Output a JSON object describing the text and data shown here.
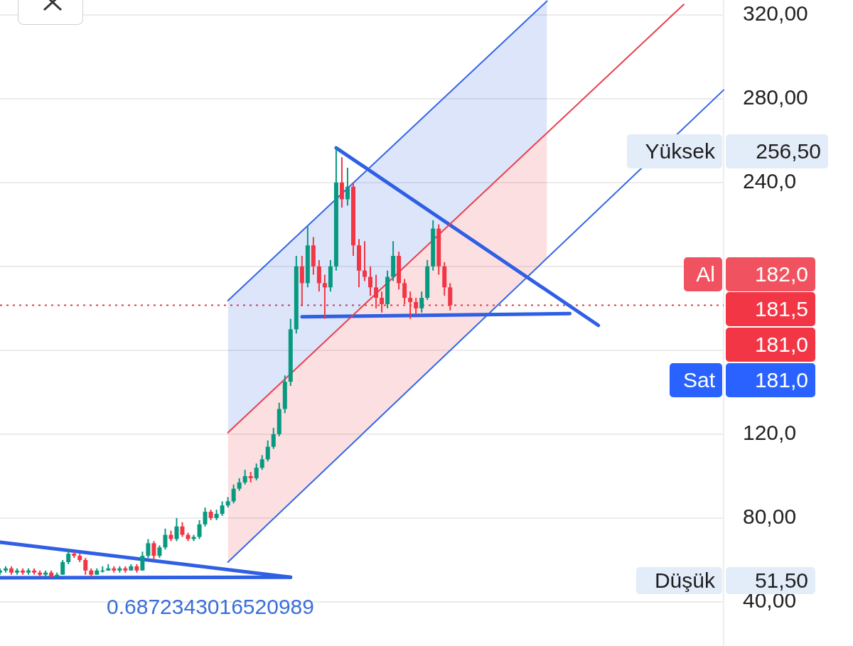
{
  "chart_data": {
    "type": "candlestick",
    "categories": [
      null,
      null,
      null,
      null,
      null,
      null,
      null,
      null,
      null,
      null,
      null,
      null,
      null,
      null,
      null,
      null,
      null,
      null,
      null,
      null,
      null,
      null,
      null,
      null,
      null,
      null,
      null,
      null,
      null,
      null,
      null,
      null,
      null,
      null,
      null,
      null,
      null,
      null,
      null,
      null,
      null,
      null,
      null,
      null,
      null,
      null,
      null,
      null,
      null,
      null,
      null,
      null,
      null,
      null,
      null,
      null,
      null,
      null,
      null,
      null,
      null,
      null,
      null,
      null,
      null,
      null,
      null,
      null,
      null,
      null,
      null,
      null,
      null,
      null,
      null,
      null,
      null,
      null,
      null,
      null,
      null,
      null,
      null,
      null,
      null,
      null,
      null,
      null,
      null,
      null,
      null,
      null,
      null,
      null,
      null,
      null,
      null,
      null,
      null,
      null,
      null,
      null,
      null,
      null,
      null,
      null,
      null,
      null,
      null,
      null,
      null,
      null,
      null,
      null,
      null,
      null,
      null,
      null,
      null,
      null,
      null,
      null,
      null,
      null,
      null,
      null,
      null,
      null
    ],
    "ohlc": [
      [
        54,
        56,
        53,
        55
      ],
      [
        55,
        57,
        54,
        56
      ],
      [
        56,
        57,
        53,
        54
      ],
      [
        54,
        56,
        53,
        55
      ],
      [
        55,
        56,
        53,
        54
      ],
      [
        54,
        56,
        53,
        55
      ],
      [
        55,
        56,
        53,
        54
      ],
      [
        54,
        55,
        52,
        53
      ],
      [
        53,
        55,
        52,
        54
      ],
      [
        54,
        55,
        52,
        52
      ],
      [
        52,
        54,
        51.5,
        53
      ],
      [
        53,
        60,
        53,
        59
      ],
      [
        59,
        65,
        58,
        63
      ],
      [
        63,
        64,
        61,
        62
      ],
      [
        62,
        63,
        59,
        60
      ],
      [
        60,
        61,
        53,
        55
      ],
      [
        55,
        56,
        52,
        53
      ],
      [
        53,
        56,
        53,
        55
      ],
      [
        55,
        57,
        54,
        55
      ],
      [
        55,
        58,
        55,
        56
      ],
      [
        56,
        57,
        54,
        55
      ],
      [
        55,
        57,
        54,
        56
      ],
      [
        56,
        57,
        54,
        55
      ],
      [
        55,
        58,
        55,
        57
      ],
      [
        57,
        58,
        54,
        55
      ],
      [
        55,
        64,
        55,
        62
      ],
      [
        62,
        70,
        61,
        68
      ],
      [
        68,
        69,
        60,
        62
      ],
      [
        62,
        67,
        61,
        66
      ],
      [
        66,
        75,
        65,
        72
      ],
      [
        72,
        74,
        69,
        70
      ],
      [
        70,
        80,
        69,
        76
      ],
      [
        76,
        78,
        71,
        72
      ],
      [
        72,
        73,
        69,
        70
      ],
      [
        70,
        72,
        69,
        71
      ],
      [
        71,
        79,
        70,
        77
      ],
      [
        77,
        85,
        76,
        83
      ],
      [
        83,
        84,
        79,
        80
      ],
      [
        80,
        84,
        79,
        82
      ],
      [
        82,
        88,
        81,
        86
      ],
      [
        86,
        90,
        85,
        88
      ],
      [
        88,
        96,
        87,
        94
      ],
      [
        94,
        99,
        93,
        97
      ],
      [
        97,
        103,
        96,
        100
      ],
      [
        100,
        102,
        97,
        99
      ],
      [
        99,
        106,
        98,
        104
      ],
      [
        104,
        110,
        103,
        108
      ],
      [
        108,
        117,
        107,
        114
      ],
      [
        114,
        123,
        113,
        120
      ],
      [
        120,
        135,
        119,
        132
      ],
      [
        132,
        148,
        130,
        145
      ],
      [
        145,
        175,
        143,
        170
      ],
      [
        170,
        205,
        168,
        200
      ],
      [
        200,
        205,
        181,
        192
      ],
      [
        192,
        219,
        190,
        210
      ],
      [
        210,
        214,
        196,
        200
      ],
      [
        200,
        203,
        188,
        192
      ],
      [
        192,
        196,
        175,
        190
      ],
      [
        190,
        203,
        188,
        200
      ],
      [
        200,
        256.5,
        198,
        240
      ],
      [
        240,
        252,
        228,
        232
      ],
      [
        232,
        247,
        229,
        238
      ],
      [
        238,
        240,
        205,
        210
      ],
      [
        210,
        213,
        190,
        198
      ],
      [
        198,
        212,
        193,
        195
      ],
      [
        195,
        200,
        186,
        190
      ],
      [
        190,
        196,
        180,
        185
      ],
      [
        185,
        188,
        178,
        182
      ],
      [
        182,
        198,
        180,
        195
      ],
      [
        195,
        212,
        193,
        205
      ],
      [
        205,
        207,
        189,
        192
      ],
      [
        192,
        194,
        182,
        185
      ],
      [
        185,
        188,
        175,
        183
      ],
      [
        183,
        185,
        177,
        180
      ],
      [
        180,
        188,
        178,
        185
      ],
      [
        185,
        203,
        184,
        200
      ],
      [
        200,
        222,
        198,
        218
      ],
      [
        218,
        220,
        196,
        200
      ],
      [
        200,
        202,
        186,
        190
      ],
      [
        190,
        192,
        179,
        181.5
      ],
      null,
      null,
      null,
      null,
      null,
      null,
      null,
      null,
      null,
      null,
      null,
      null,
      null,
      null,
      null,
      null,
      null,
      null,
      null,
      null,
      null,
      null,
      null,
      null,
      null,
      null,
      null,
      null,
      null,
      null,
      null,
      null,
      null,
      null,
      null,
      null,
      null,
      null,
      null,
      null,
      null,
      null,
      null,
      null,
      null,
      null,
      null,
      null
    ],
    "colors": [
      "#089981",
      "#089981",
      "#f23645",
      "#089981",
      "#f23645",
      "#089981",
      "#f23645",
      "#f23645",
      "#089981",
      "#f23645",
      "#089981",
      "#089981",
      "#089981",
      "#f23645",
      "#f23645",
      "#f23645",
      "#f23645",
      "#089981",
      "#089981",
      "#089981",
      "#f23645",
      "#089981",
      "#f23645",
      "#089981",
      "#f23645",
      "#089981",
      "#089981",
      "#f23645",
      "#089981",
      "#089981",
      "#f23645",
      "#089981",
      "#f23645",
      "#f23645",
      "#089981",
      "#089981",
      "#089981",
      "#f23645",
      "#089981",
      "#089981",
      "#089981",
      "#089981",
      "#089981",
      "#089981",
      "#f23645",
      "#089981",
      "#089981",
      "#089981",
      "#089981",
      "#089981",
      "#089981",
      "#089981",
      "#089981",
      "#f23645",
      "#089981",
      "#f23645",
      "#f23645",
      "#f23645",
      "#089981",
      "#089981",
      "#f23645",
      "#089981",
      "#f23645",
      "#f23645",
      "#f23645",
      "#f23645",
      "#f23645",
      "#f23645",
      "#089981",
      "#089981",
      "#f23645",
      "#f23645",
      "#f23645",
      "#f23645",
      "#089981",
      "#089981",
      "#089981",
      "#f23645",
      "#f23645",
      "#f23645",
      null,
      null,
      null,
      null,
      null,
      null,
      null,
      null,
      null,
      null,
      null,
      null,
      null,
      null,
      null,
      null,
      null,
      null,
      null,
      null,
      null,
      null,
      null,
      null,
      null,
      null,
      null,
      null,
      null,
      null,
      null,
      null,
      null,
      null,
      null,
      null,
      null,
      null,
      null,
      null,
      null,
      null,
      null,
      null,
      null,
      null,
      null,
      null
    ],
    "series": [
      {
        "type": "line",
        "color": "#3366e6",
        "values": [
          null,
          null,
          null,
          null,
          null,
          null,
          null,
          null,
          null,
          null,
          null,
          null,
          null,
          null,
          null,
          null,
          null,
          null,
          null,
          null,
          null,
          null,
          null,
          null,
          null,
          null,
          null,
          null,
          null,
          null,
          null,
          null,
          null,
          null,
          null,
          null,
          null,
          null,
          null,
          null,
          183.7,
          null,
          null,
          null,
          null,
          null,
          null,
          null,
          null,
          null,
          null,
          null,
          null,
          null,
          null,
          null,
          null,
          null,
          null,
          null,
          null,
          null,
          null,
          null,
          null,
          null,
          null,
          null,
          null,
          null,
          null,
          null,
          null,
          null,
          null,
          null,
          null,
          null,
          null,
          null,
          null,
          null,
          null,
          null,
          null,
          null,
          null,
          null,
          null,
          null,
          null,
          null,
          null,
          null,
          null,
          null,
          326.5,
          null,
          null,
          null,
          null,
          null,
          null,
          null,
          null,
          null,
          null,
          null,
          null,
          null,
          null,
          null,
          null,
          null,
          null,
          null,
          null,
          null,
          null,
          null,
          null,
          null,
          null,
          null,
          null,
          null,
          null,
          null
        ],
        "upper": [
          null,
          null,
          null,
          null,
          null,
          null,
          null,
          null,
          null,
          null,
          null,
          null,
          null,
          null,
          null,
          null,
          null,
          null,
          null,
          null,
          null,
          null,
          null,
          null,
          null,
          null,
          null,
          null,
          null,
          null,
          null,
          null,
          null,
          null,
          null,
          null,
          null,
          null,
          null,
          null,
          183.7,
          null,
          null,
          null,
          null,
          null,
          null,
          null,
          null,
          null,
          null,
          null,
          null,
          null,
          null,
          null,
          null,
          null,
          null,
          null,
          null,
          null,
          null,
          null,
          null,
          null,
          null,
          null,
          null,
          null,
          null,
          null,
          null,
          null,
          null,
          null,
          null,
          null,
          null,
          null,
          null,
          null,
          null,
          null,
          null,
          null,
          null,
          null,
          null,
          null,
          null,
          null,
          null,
          null,
          null,
          null,
          326.5,
          null,
          null,
          null,
          null,
          null,
          null,
          null,
          null,
          null,
          null,
          null,
          null,
          null,
          null,
          null,
          null,
          null,
          null,
          null,
          null,
          null,
          null,
          null,
          null,
          null,
          null,
          null,
          null,
          null,
          null,
          null
        ],
        "lower": [
          null,
          null,
          null,
          null,
          null,
          null,
          null,
          null,
          null,
          null,
          null,
          null,
          null,
          null,
          null,
          null,
          null,
          null,
          null,
          null,
          null,
          null,
          null,
          null,
          null,
          null,
          null,
          null,
          null,
          null,
          null,
          null,
          null,
          null,
          null,
          null,
          null,
          null,
          null,
          null,
          120.7,
          null,
          null,
          null,
          null,
          null,
          null,
          null,
          null,
          null,
          null,
          null,
          null,
          null,
          null,
          null,
          null,
          null,
          null,
          null,
          null,
          null,
          null,
          null,
          null,
          null,
          null,
          null,
          null,
          null,
          null,
          null,
          null,
          null,
          null,
          null,
          null,
          null,
          null,
          null,
          null,
          null,
          null,
          null,
          null,
          null,
          null,
          null,
          null,
          null,
          null,
          null,
          null,
          null,
          null,
          null,
          263.6,
          null,
          null,
          null,
          null,
          null,
          null,
          null,
          null,
          null,
          null,
          null,
          null,
          null,
          null,
          null,
          null,
          null,
          null,
          null,
          null,
          null,
          null,
          null,
          null,
          null,
          null,
          null,
          null,
          null,
          null,
          null
        ]
      },
      {
        "type": "line",
        "color": "#e8404f",
        "values": [
          null,
          null,
          null,
          null,
          null,
          null,
          null,
          null,
          null,
          null,
          null,
          null,
          null,
          null,
          null,
          null,
          null,
          null,
          null,
          null,
          null,
          null,
          null,
          null,
          null,
          null,
          null,
          null,
          null,
          null,
          null,
          null,
          null,
          null,
          null,
          null,
          null,
          null,
          null,
          null,
          120.7,
          null,
          null,
          null,
          null,
          null,
          null,
          null,
          null,
          null,
          null,
          null,
          null,
          null,
          null,
          null,
          null,
          null,
          null,
          null,
          null,
          null,
          null,
          null,
          null,
          null,
          null,
          null,
          null,
          null,
          null,
          null,
          null,
          null,
          null,
          null,
          null,
          null,
          null,
          null,
          null,
          null,
          null,
          null,
          null,
          null,
          null,
          null,
          null,
          null,
          null,
          null,
          null,
          null,
          null,
          null,
          null,
          null,
          null,
          null,
          null,
          null,
          null,
          null,
          null,
          null,
          null,
          null,
          null,
          null,
          null,
          null,
          null,
          null,
          null,
          null,
          null,
          null,
          null,
          null,
          324.9,
          null,
          null,
          null,
          null,
          null,
          null,
          null
        ],
        "upper": [
          null,
          null,
          null,
          null,
          null,
          null,
          null,
          null,
          null,
          null,
          null,
          null,
          null,
          null,
          null,
          null,
          null,
          null,
          null,
          null,
          null,
          null,
          null,
          null,
          null,
          null,
          null,
          null,
          null,
          null,
          null,
          null,
          null,
          null,
          null,
          null,
          null,
          null,
          null,
          null,
          120.7,
          null,
          null,
          null,
          null,
          null,
          null,
          null,
          null,
          null,
          null,
          null,
          null,
          null,
          null,
          null,
          null,
          null,
          null,
          null,
          null,
          null,
          null,
          null,
          null,
          null,
          null,
          null,
          null,
          null,
          null,
          null,
          null,
          null,
          null,
          null,
          null,
          null,
          null,
          null,
          null,
          null,
          null,
          null,
          null,
          null,
          null,
          null,
          null,
          null,
          null,
          null,
          null,
          null,
          null,
          null,
          263.6,
          null,
          null,
          null,
          null,
          null,
          null,
          null,
          null,
          null,
          null,
          null,
          null,
          null,
          null,
          null,
          null,
          null,
          null,
          null,
          null,
          null,
          null,
          null,
          null,
          null,
          null,
          null,
          null,
          null,
          null,
          null
        ],
        "lower": [
          null,
          null,
          null,
          null,
          null,
          null,
          null,
          null,
          null,
          null,
          null,
          null,
          null,
          null,
          null,
          null,
          null,
          null,
          null,
          null,
          null,
          null,
          null,
          null,
          null,
          null,
          null,
          null,
          null,
          null,
          null,
          null,
          null,
          null,
          null,
          null,
          null,
          null,
          null,
          null,
          59.0,
          null,
          null,
          null,
          null,
          null,
          null,
          null,
          null,
          null,
          null,
          null,
          null,
          null,
          null,
          null,
          null,
          null,
          null,
          null,
          null,
          null,
          null,
          null,
          null,
          null,
          null,
          null,
          null,
          null,
          null,
          null,
          null,
          null,
          null,
          null,
          null,
          null,
          null,
          null,
          null,
          null,
          null,
          null,
          null,
          null,
          null,
          null,
          null,
          null,
          null,
          null,
          null,
          null,
          null,
          null,
          204.1,
          null,
          null,
          null,
          null,
          null,
          null,
          null,
          null,
          null,
          null,
          null,
          null,
          null,
          null,
          null,
          null,
          null,
          null,
          null,
          null,
          null,
          null,
          null,
          null,
          null,
          null,
          null,
          null,
          null,
          null,
          null
        ]
      },
      {
        "type": "line",
        "color": "#3366e6",
        "values": [
          null,
          null,
          null,
          null,
          null,
          null,
          null,
          null,
          null,
          null,
          null,
          null,
          null,
          null,
          null,
          null,
          null,
          null,
          null,
          null,
          null,
          null,
          null,
          null,
          null,
          null,
          null,
          null,
          null,
          null,
          null,
          null,
          null,
          null,
          null,
          null,
          null,
          null,
          null,
          null,
          59.0,
          null,
          null,
          null,
          null,
          null,
          null,
          null,
          null,
          null,
          null,
          null,
          null,
          null,
          null,
          null,
          null,
          null,
          null,
          null,
          null,
          null,
          null,
          null,
          null,
          null,
          null,
          null,
          null,
          null,
          null,
          null,
          null,
          null,
          null,
          null,
          null,
          null,
          null,
          null,
          null,
          null,
          null,
          null,
          null,
          null,
          null,
          null,
          null,
          null,
          null,
          null,
          null,
          null,
          null,
          null,
          null,
          null,
          null,
          null,
          null,
          null,
          null,
          null,
          null,
          null,
          null,
          null,
          null,
          null,
          null,
          null,
          null,
          null,
          null,
          null,
          null,
          null,
          null,
          null,
          null,
          null,
          null,
          null,
          null,
          null,
          null,
          284.1
        ]
      },
      {
        "type": "line",
        "color": "#2f5fe4",
        "values": [
          51.5,
          null,
          null,
          null,
          null,
          null,
          null,
          null,
          null,
          null,
          null,
          null,
          null,
          null,
          null,
          null,
          null,
          null,
          null,
          null,
          null,
          null,
          null,
          null,
          null,
          null,
          null,
          null,
          null,
          null,
          null,
          null,
          null,
          null,
          null,
          null,
          null,
          null,
          null,
          null,
          null,
          null,
          null,
          null,
          null,
          null,
          null,
          null,
          null,
          null,
          null,
          51.8,
          null,
          null,
          null,
          null,
          null,
          null,
          null,
          null,
          null,
          null,
          null,
          null,
          null,
          null,
          null,
          null,
          null,
          null,
          null,
          null,
          null,
          null,
          null,
          null,
          null,
          null,
          null,
          null,
          null,
          null,
          null,
          null,
          null,
          null,
          null,
          null,
          null,
          null,
          null,
          null,
          null,
          null,
          null,
          null,
          null,
          null,
          null,
          null,
          null,
          null,
          null,
          null,
          null,
          null,
          null,
          null,
          null,
          null,
          null,
          null,
          null,
          null,
          null,
          null,
          null,
          null,
          null,
          null,
          null,
          null,
          null,
          null,
          null,
          null,
          null,
          null
        ]
      },
      {
        "type": "line",
        "color": "#2f5fe4",
        "values": [
          68.5,
          null,
          null,
          null,
          null,
          null,
          null,
          null,
          null,
          null,
          null,
          null,
          null,
          null,
          null,
          null,
          null,
          null,
          null,
          null,
          null,
          null,
          null,
          null,
          null,
          null,
          null,
          null,
          null,
          null,
          null,
          null,
          null,
          null,
          null,
          null,
          null,
          null,
          null,
          null,
          null,
          null,
          null,
          null,
          null,
          null,
          null,
          null,
          null,
          null,
          null,
          51.8,
          null,
          null,
          null,
          null,
          null,
          null,
          null,
          null,
          null,
          null,
          null,
          null,
          null,
          null,
          null,
          null,
          null,
          null,
          null,
          null,
          null,
          null,
          null,
          null,
          null,
          null,
          null,
          null,
          null,
          null,
          null,
          null,
          null,
          null,
          null,
          null,
          null,
          null,
          null,
          null,
          null,
          null,
          null,
          null,
          null,
          null,
          null,
          null,
          null,
          null,
          null,
          null,
          null,
          null,
          null,
          null,
          null,
          null,
          null,
          null,
          null,
          null,
          null,
          null,
          null,
          null,
          null,
          null,
          null,
          null,
          null,
          null,
          null,
          null,
          null,
          null
        ]
      },
      {
        "type": "line",
        "color": "#2f5fe4",
        "values": [
          null,
          null,
          null,
          null,
          null,
          null,
          null,
          null,
          null,
          null,
          null,
          null,
          null,
          null,
          null,
          null,
          null,
          null,
          null,
          null,
          null,
          null,
          null,
          null,
          null,
          null,
          null,
          null,
          null,
          null,
          null,
          null,
          null,
          null,
          null,
          null,
          null,
          null,
          null,
          null,
          null,
          null,
          null,
          null,
          null,
          null,
          null,
          null,
          null,
          null,
          null,
          null,
          null,
          null,
          null,
          null,
          null,
          null,
          null,
          256.5,
          null,
          null,
          null,
          null,
          null,
          null,
          null,
          null,
          null,
          null,
          null,
          null,
          null,
          null,
          null,
          null,
          null,
          null,
          null,
          null,
          null,
          null,
          null,
          null,
          null,
          null,
          null,
          null,
          null,
          null,
          null,
          null,
          null,
          null,
          null,
          null,
          null,
          null,
          null,
          null,
          null,
          null,
          null,
          null,
          null,
          171.9,
          null,
          null,
          null,
          null,
          null,
          null,
          null,
          null,
          null,
          null,
          null,
          null,
          null,
          null,
          null,
          null,
          null,
          null,
          null,
          null,
          null,
          null
        ]
      },
      {
        "type": "line",
        "color": "#2f5fe4",
        "values": [
          null,
          null,
          null,
          null,
          null,
          null,
          null,
          null,
          null,
          null,
          null,
          null,
          null,
          null,
          null,
          null,
          null,
          null,
          null,
          null,
          null,
          null,
          null,
          null,
          null,
          null,
          null,
          null,
          null,
          null,
          null,
          null,
          null,
          null,
          null,
          null,
          null,
          null,
          null,
          null,
          null,
          null,
          null,
          null,
          null,
          null,
          null,
          null,
          null,
          null,
          null,
          null,
          null,
          176,
          null,
          null,
          null,
          null,
          null,
          null,
          null,
          null,
          null,
          null,
          null,
          null,
          null,
          null,
          null,
          null,
          null,
          null,
          null,
          null,
          null,
          null,
          null,
          null,
          null,
          null,
          null,
          null,
          null,
          null,
          null,
          null,
          null,
          null,
          null,
          null,
          null,
          null,
          null,
          null,
          null,
          null,
          null,
          null,
          null,
          null,
          177.5,
          null,
          null,
          null,
          null,
          null,
          null,
          null,
          null,
          null,
          null,
          null,
          null,
          null,
          null,
          null,
          null,
          null,
          null,
          null,
          null,
          null,
          null,
          null,
          null,
          null,
          null,
          null
        ]
      }
    ],
    "ylim": [
      19,
      327
    ],
    "yticks": [
      {
        "value": 40,
        "label": "40,00"
      },
      {
        "value": 80,
        "label": "80,00"
      },
      {
        "value": 120,
        "label": "120,0"
      },
      {
        "value": 160,
        "label": null
      },
      {
        "value": 200,
        "label": null
      },
      {
        "value": 240,
        "label": "240,0"
      },
      {
        "value": 280,
        "label": "280,00"
      },
      {
        "value": 320,
        "label": "320,00"
      }
    ],
    "grid": "y",
    "legend": false,
    "marker": "none",
    "ref_lines": [
      {
        "axis": "y",
        "value": 181.5,
        "color": "#d9404a",
        "line_style": "dotted"
      }
    ],
    "annotations": [
      "Yüksek",
      "256,50",
      "Al",
      "182,0",
      "181,5",
      "181,0",
      "Sat",
      "181,0",
      "Düşük",
      "51,50",
      "0.6872343016520989"
    ]
  }
}
